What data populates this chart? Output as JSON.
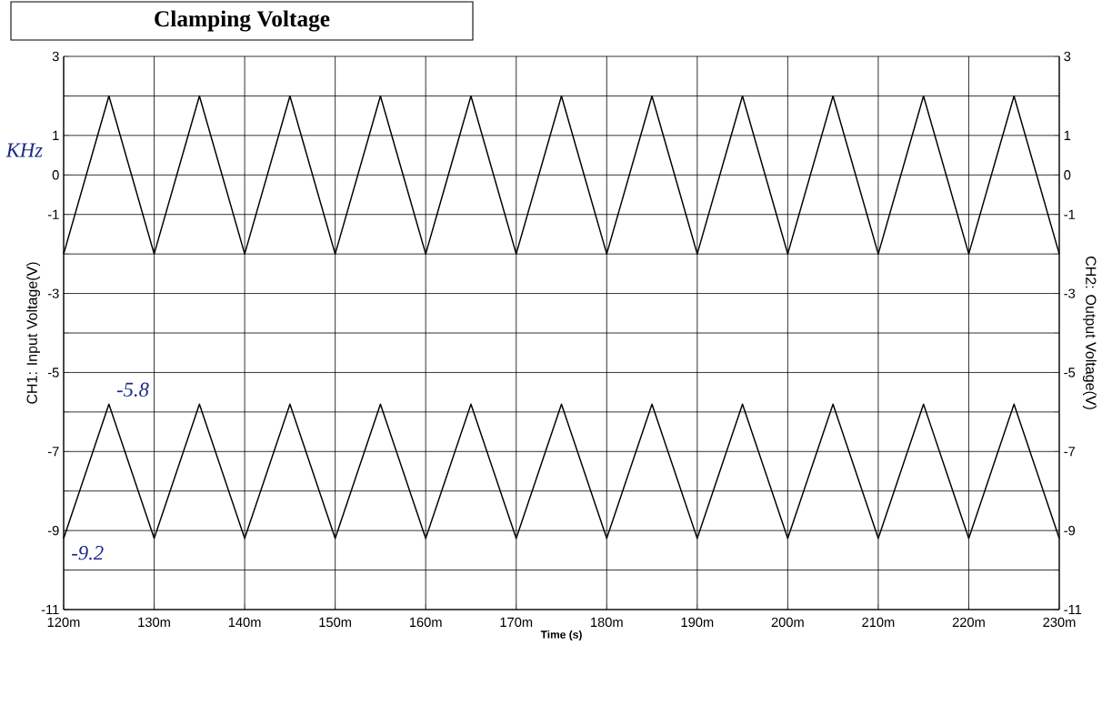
{
  "chart_data": {
    "type": "line",
    "title": "Clamping Voltage",
    "xlabel": "Time (s)",
    "ylabel": "CH1: Input Voltage(V)",
    "y2label": "CH2: Output Voltage(V)",
    "xlim": [
      120,
      230
    ],
    "xticks": [
      {
        "value": 120,
        "label": "120m"
      },
      {
        "value": 130,
        "label": "130m"
      },
      {
        "value": 140,
        "label": "140m"
      },
      {
        "value": 150,
        "label": "150m"
      },
      {
        "value": 160,
        "label": "160m"
      },
      {
        "value": 170,
        "label": "170m"
      },
      {
        "value": 180,
        "label": "180m"
      },
      {
        "value": 190,
        "label": "190m"
      },
      {
        "value": 200,
        "label": "200m"
      },
      {
        "value": 210,
        "label": "210m"
      },
      {
        "value": 220,
        "label": "220m"
      },
      {
        "value": 230,
        "label": "230m"
      }
    ],
    "ylim": [
      -11,
      3
    ],
    "yticks": [
      3,
      {
        "value": 2,
        "label": null
      },
      1,
      0,
      -1,
      {
        "value": -2,
        "label": null
      },
      -3,
      {
        "value": -4,
        "label": null
      },
      -5,
      {
        "value": -6,
        "label": null
      },
      -7,
      {
        "value": -8,
        "label": null
      },
      -9,
      {
        "value": -10,
        "label": null
      },
      -11
    ],
    "y2lim": [
      -11,
      3
    ],
    "y2ticks": [
      3,
      {
        "value": 2,
        "label": null
      },
      1,
      0,
      -1,
      {
        "value": -2,
        "label": null
      },
      -3,
      {
        "value": -4,
        "label": null
      },
      -5,
      {
        "value": -6,
        "label": null
      },
      -7,
      {
        "value": -8,
        "label": null
      },
      -9,
      {
        "value": -10,
        "label": null
      },
      -11
    ],
    "grid": true,
    "series": [
      {
        "color": "#000000",
        "x": [
          120,
          125,
          130,
          135,
          140,
          145,
          150,
          155,
          160,
          165,
          170,
          175,
          180,
          185,
          190,
          195,
          200,
          205,
          210,
          215,
          220,
          225,
          230
        ],
        "values": [
          -2,
          2,
          -2,
          2,
          -2,
          2,
          -2,
          2,
          -2,
          2,
          -2,
          2,
          -2,
          2,
          -2,
          2,
          -2,
          2,
          -2,
          2,
          -2,
          2,
          -2
        ]
      },
      {
        "color": "#000000",
        "axis": "y2",
        "x": [
          120,
          125,
          130,
          135,
          140,
          145,
          150,
          155,
          160,
          165,
          170,
          175,
          180,
          185,
          190,
          195,
          200,
          205,
          210,
          215,
          220,
          225,
          230
        ],
        "values": [
          -9.2,
          -5.8,
          -9.2,
          -5.8,
          -9.2,
          -5.8,
          -9.2,
          -5.8,
          -9.2,
          -5.8,
          -9.2,
          -5.8,
          -9.2,
          -5.8,
          -9.2,
          -5.8,
          -9.2,
          -5.8,
          -9.2,
          -5.8,
          -9.2,
          -5.8,
          -9.2
        ]
      }
    ],
    "annotations": [
      {
        "text": "-5.8",
        "x": 125,
        "y": -5.8
      },
      {
        "text": "-9.2",
        "x": 120,
        "y": -9.2
      },
      "KHz"
    ]
  }
}
